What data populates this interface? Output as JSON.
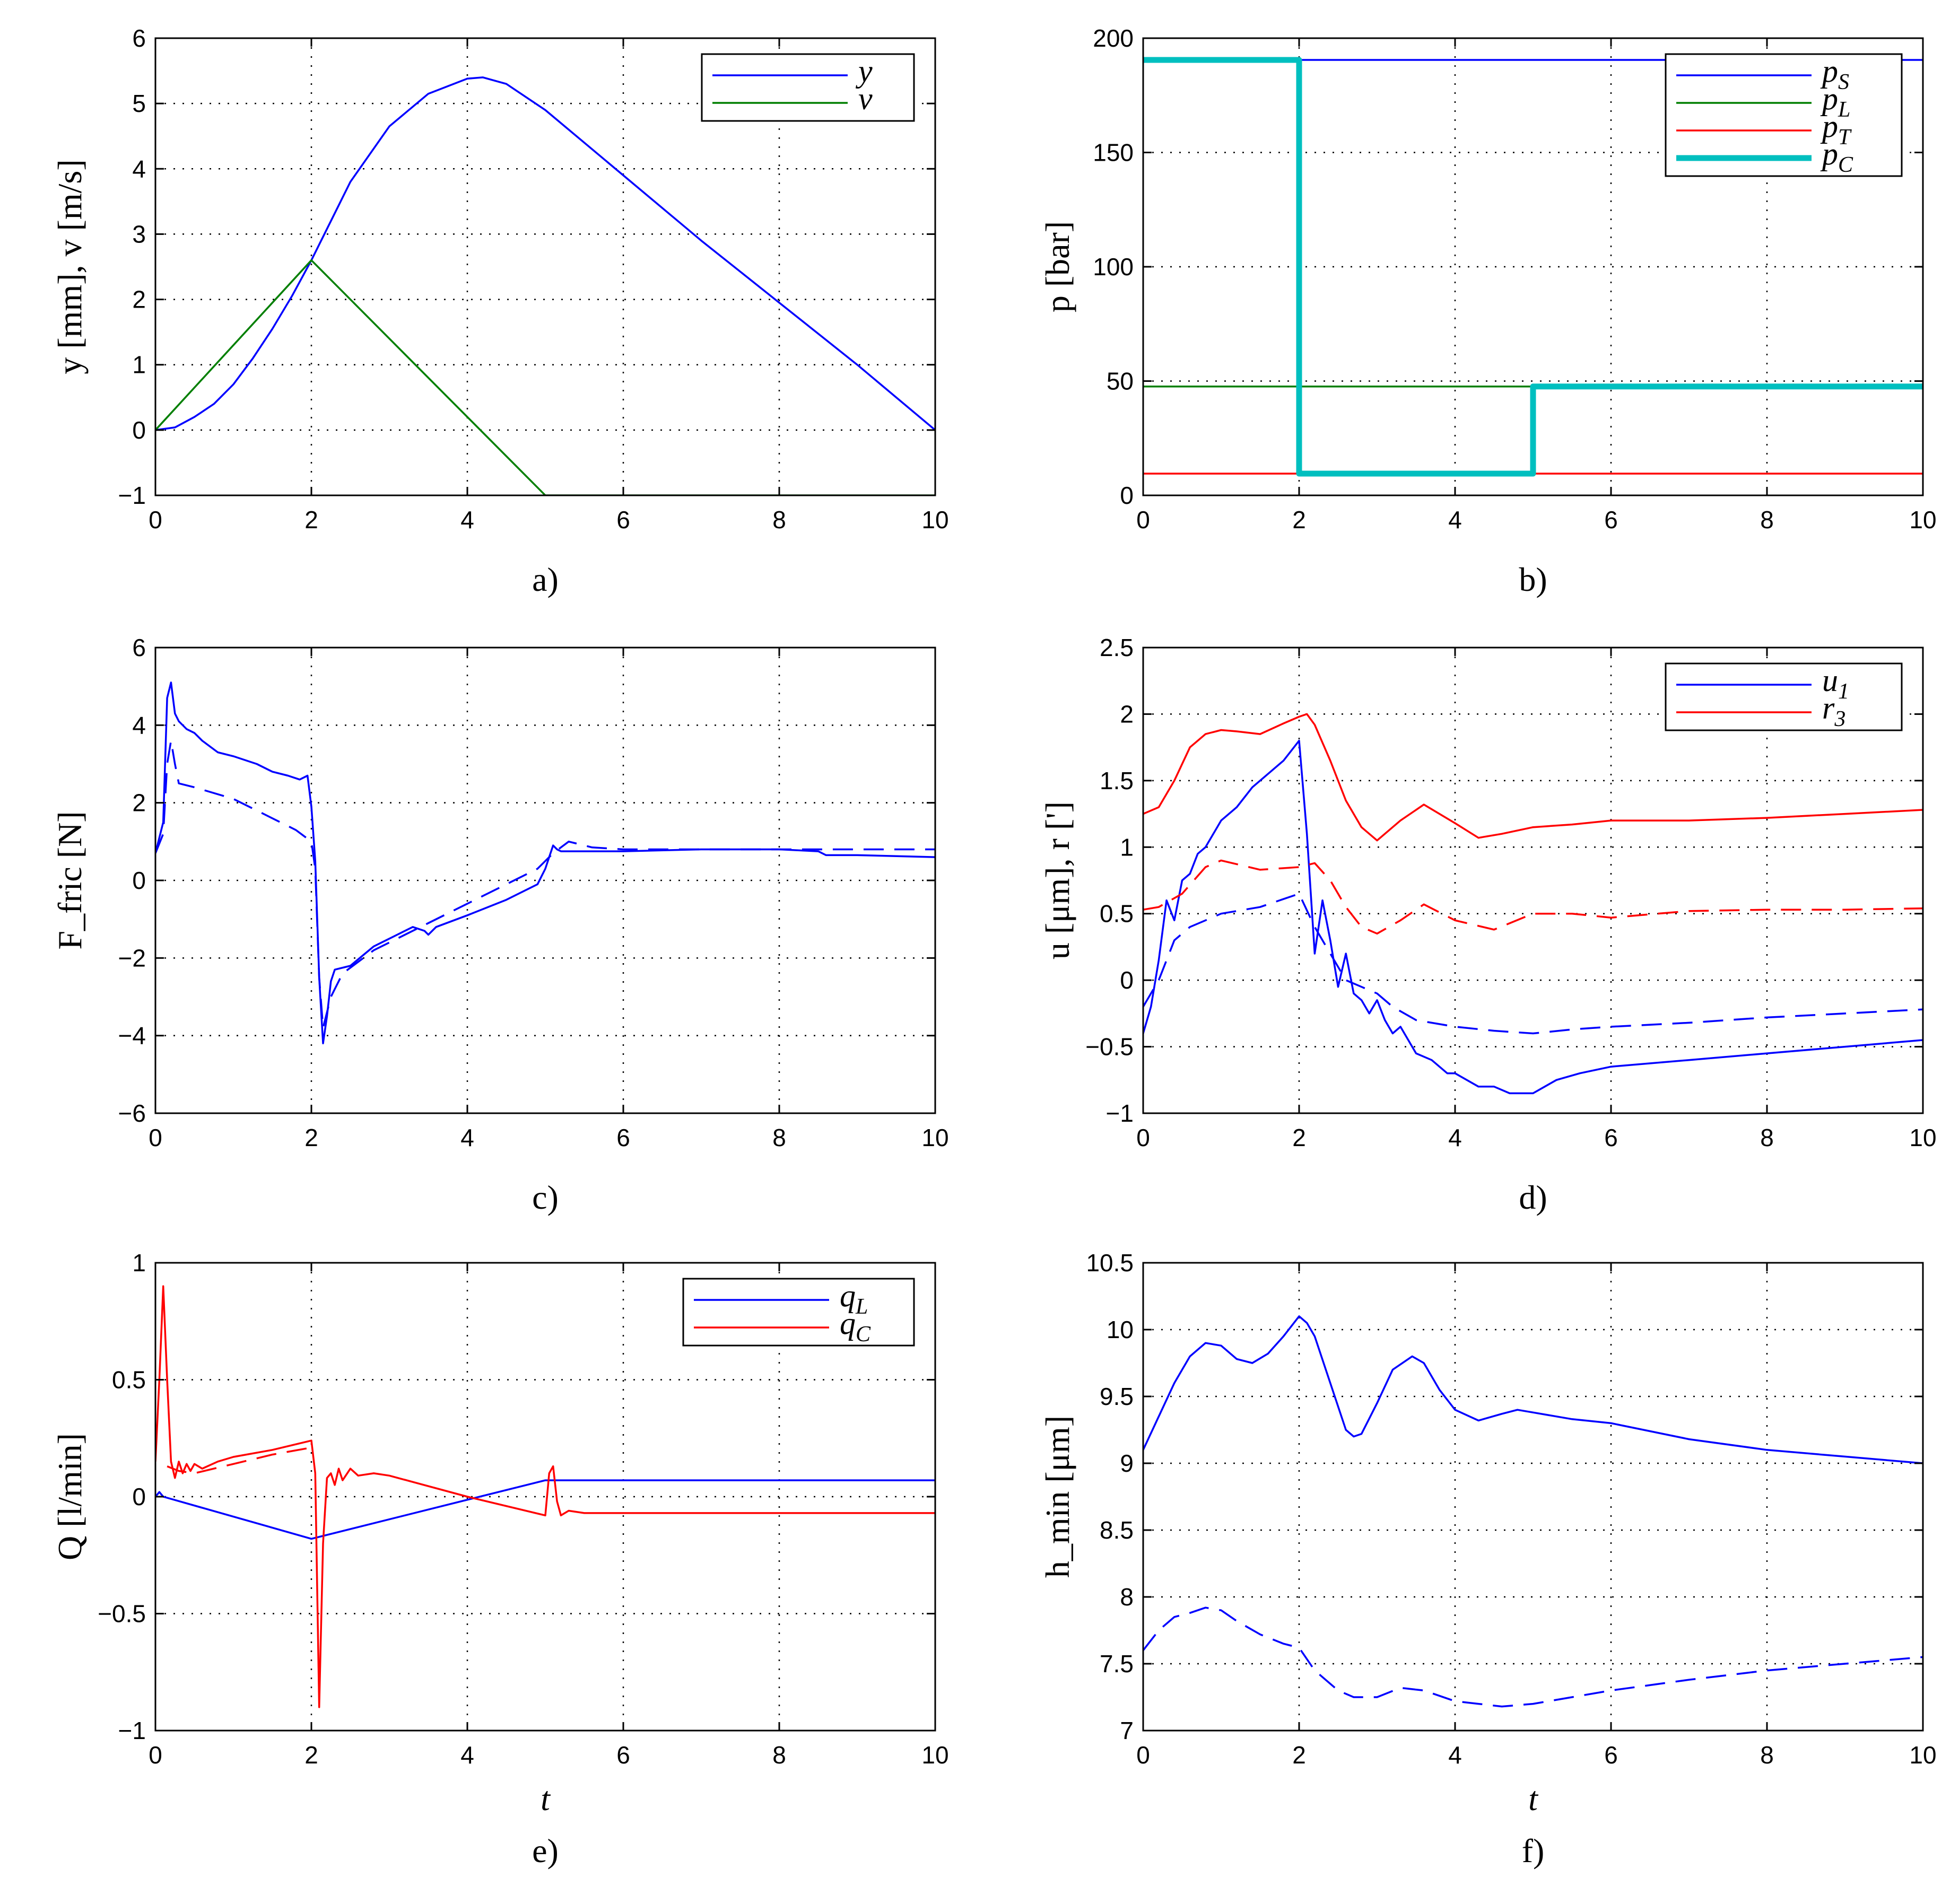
{
  "chart_data": [
    {
      "panel": "a",
      "type": "line",
      "caption": "a)",
      "xlabel": "",
      "ylabel": "y [mm], v [m/s]",
      "xlim": [
        0,
        10
      ],
      "ylim": [
        -1,
        6
      ],
      "xticks": [
        "0",
        "2",
        "4",
        "6",
        "8",
        "10"
      ],
      "yticks": [
        "−1",
        "0",
        "1",
        "2",
        "3",
        "4",
        "5",
        "6"
      ],
      "grid": true,
      "legend_position": "top-right",
      "series": [
        {
          "name": "y",
          "color": "#0000ff",
          "dash": "solid",
          "width": "normal",
          "x": [
            0,
            0.25,
            0.5,
            0.75,
            1.0,
            1.25,
            1.5,
            1.75,
            2.0,
            2.5,
            3.0,
            3.5,
            4.0,
            4.2,
            4.5,
            5.0,
            6.0,
            7.0,
            8.0,
            9.0,
            10.0
          ],
          "y": [
            0,
            0.04,
            0.2,
            0.4,
            0.7,
            1.1,
            1.55,
            2.05,
            2.6,
            3.8,
            4.65,
            5.15,
            5.38,
            5.4,
            5.3,
            4.9,
            3.9,
            2.9,
            1.95,
            1.0,
            0
          ]
        },
        {
          "name": "v",
          "color": "#007f00",
          "dash": "solid",
          "width": "normal",
          "x": [
            0,
            2,
            5,
            10
          ],
          "y": [
            0,
            2.6,
            -1,
            -1
          ]
        }
      ]
    },
    {
      "panel": "b",
      "type": "line",
      "caption": "b)",
      "xlabel": "",
      "ylabel": "p [bar]",
      "xlim": [
        0,
        10
      ],
      "ylim": [
        0,
        210
      ],
      "xticks": [
        "0",
        "2",
        "4",
        "6",
        "8",
        "10"
      ],
      "yticks": [
        "0",
        "50",
        "100",
        "150",
        "200"
      ],
      "grid": true,
      "legend_position": "top-right",
      "series": [
        {
          "name": "pS",
          "color": "#0000ff",
          "dash": "solid",
          "width": "normal",
          "x": [
            0,
            10
          ],
          "y": [
            200,
            200
          ]
        },
        {
          "name": "pL",
          "color": "#007f00",
          "dash": "solid",
          "width": "normal",
          "x": [
            0,
            10
          ],
          "y": [
            50,
            50
          ]
        },
        {
          "name": "pT",
          "color": "#ff0000",
          "dash": "solid",
          "width": "normal",
          "x": [
            0,
            10
          ],
          "y": [
            10,
            10
          ]
        },
        {
          "name": "pC",
          "color": "#00bfbf",
          "dash": "solid",
          "width": "thick",
          "x": [
            0,
            2,
            2,
            5,
            5,
            10
          ],
          "y": [
            200,
            200,
            10,
            10,
            50,
            50
          ]
        }
      ]
    },
    {
      "panel": "c",
      "type": "line",
      "caption": "c)",
      "xlabel": "",
      "ylabel": "F_fric [N]",
      "xlim": [
        0,
        10
      ],
      "ylim": [
        -6,
        6
      ],
      "xticks": [
        "0",
        "2",
        "4",
        "6",
        "8",
        "10"
      ],
      "yticks": [
        "−6",
        "−4",
        "−2",
        "0",
        "2",
        "4",
        "6"
      ],
      "grid": true,
      "legend_position": "none",
      "series": [
        {
          "name": "solid",
          "color": "#0000ff",
          "dash": "solid",
          "width": "normal",
          "x": [
            0,
            0.1,
            0.15,
            0.2,
            0.25,
            0.3,
            0.35,
            0.4,
            0.5,
            0.6,
            0.8,
            1.0,
            1.3,
            1.5,
            1.7,
            1.85,
            1.95,
            2.0,
            2.05,
            2.1,
            2.15,
            2.2,
            2.25,
            2.3,
            2.5,
            2.8,
            3.0,
            3.3,
            3.45,
            3.5,
            3.6,
            4.0,
            4.5,
            4.9,
            5.0,
            5.05,
            5.1,
            5.15,
            5.2,
            5.5,
            6.0,
            7.0,
            8.0,
            8.5,
            8.6,
            9.0,
            10.0
          ],
          "y": [
            0.7,
            1.5,
            4.7,
            5.1,
            4.3,
            4.1,
            4.0,
            3.9,
            3.8,
            3.6,
            3.3,
            3.2,
            3.0,
            2.8,
            2.7,
            2.6,
            2.7,
            1.9,
            0.5,
            -2.5,
            -4.2,
            -3.5,
            -2.6,
            -2.3,
            -2.2,
            -1.7,
            -1.5,
            -1.2,
            -1.3,
            -1.4,
            -1.2,
            -0.9,
            -0.5,
            -0.1,
            0.3,
            0.6,
            0.9,
            0.8,
            0.75,
            0.75,
            0.75,
            0.8,
            0.8,
            0.75,
            0.65,
            0.65,
            0.6
          ]
        },
        {
          "name": "dashed",
          "color": "#0000ff",
          "dash": "dashed",
          "width": "normal",
          "x": [
            0,
            0.1,
            0.15,
            0.2,
            0.25,
            0.3,
            0.5,
            1.0,
            1.5,
            1.8,
            2.0,
            2.05,
            2.1,
            2.15,
            2.25,
            2.4,
            2.8,
            3.5,
            4.0,
            4.5,
            4.9,
            5.1,
            5.3,
            5.6,
            6.0,
            7.0,
            8.0,
            9.0,
            10.0
          ],
          "y": [
            0.7,
            1.2,
            3.0,
            3.6,
            3.0,
            2.5,
            2.4,
            2.1,
            1.6,
            1.3,
            1.0,
            0.3,
            -2.5,
            -3.8,
            -3.0,
            -2.4,
            -1.8,
            -1.1,
            -0.6,
            -0.1,
            0.3,
            0.7,
            1.0,
            0.85,
            0.8,
            0.8,
            0.8,
            0.8,
            0.8
          ]
        }
      ]
    },
    {
      "panel": "d",
      "type": "line",
      "caption": "d)",
      "xlabel": "",
      "ylabel": "u [μm], r [']",
      "xlim": [
        0,
        10
      ],
      "ylim": [
        -1,
        2.5
      ],
      "xticks": [
        "0",
        "2",
        "4",
        "6",
        "8",
        "10"
      ],
      "yticks": [
        "−1",
        "−0.5",
        "0",
        "0.5",
        "1",
        "1.5",
        "2",
        "2.5"
      ],
      "grid": true,
      "legend_position": "top-right",
      "series": [
        {
          "name": "u1",
          "color": "#0000ff",
          "dash": "solid",
          "width": "normal",
          "x": [
            0,
            0.1,
            0.2,
            0.3,
            0.4,
            0.5,
            0.6,
            0.7,
            0.8,
            1.0,
            1.2,
            1.4,
            1.6,
            1.8,
            2.0,
            2.1,
            2.2,
            2.3,
            2.4,
            2.5,
            2.6,
            2.7,
            2.8,
            2.9,
            3.0,
            3.1,
            3.2,
            3.3,
            3.5,
            3.7,
            3.9,
            4.0,
            4.3,
            4.5,
            4.7,
            5.0,
            5.3,
            5.6,
            6.0,
            7.0,
            8.0,
            9.0,
            10.0
          ],
          "y": [
            -0.4,
            -0.2,
            0.15,
            0.6,
            0.45,
            0.75,
            0.8,
            0.95,
            1.0,
            1.2,
            1.3,
            1.45,
            1.55,
            1.65,
            1.8,
            1.1,
            0.2,
            0.6,
            0.3,
            -0.05,
            0.2,
            -0.1,
            -0.15,
            -0.25,
            -0.15,
            -0.3,
            -0.4,
            -0.35,
            -0.55,
            -0.6,
            -0.7,
            -0.7,
            -0.8,
            -0.8,
            -0.85,
            -0.85,
            -0.75,
            -0.7,
            -0.65,
            -0.6,
            -0.55,
            -0.5,
            -0.45
          ]
        },
        {
          "name": "r3",
          "color": "#ff0000",
          "dash": "solid",
          "width": "normal",
          "x": [
            0,
            0.2,
            0.4,
            0.6,
            0.8,
            1.0,
            1.2,
            1.5,
            1.8,
            2.0,
            2.1,
            2.2,
            2.4,
            2.6,
            2.8,
            3.0,
            3.3,
            3.6,
            4.0,
            4.3,
            4.6,
            5.0,
            5.5,
            6.0,
            7.0,
            8.0,
            9.0,
            10.0
          ],
          "y": [
            1.25,
            1.3,
            1.5,
            1.75,
            1.85,
            1.88,
            1.87,
            1.85,
            1.93,
            1.98,
            2.0,
            1.92,
            1.65,
            1.35,
            1.15,
            1.05,
            1.2,
            1.32,
            1.18,
            1.07,
            1.1,
            1.15,
            1.17,
            1.2,
            1.2,
            1.22,
            1.25,
            1.28
          ]
        },
        {
          "name": "u1 (dashed)",
          "color": "#0000ff",
          "dash": "dashed",
          "width": "normal",
          "x": [
            0,
            0.2,
            0.4,
            0.6,
            0.8,
            1.0,
            1.5,
            2.0,
            2.2,
            2.4,
            2.6,
            2.8,
            3.0,
            3.2,
            3.5,
            4.0,
            4.5,
            5.0,
            5.5,
            6.0,
            7.0,
            8.0,
            9.0,
            10.0
          ],
          "y": [
            -0.2,
            0.0,
            0.3,
            0.4,
            0.45,
            0.5,
            0.55,
            0.65,
            0.4,
            0.2,
            0.0,
            -0.05,
            -0.1,
            -0.2,
            -0.3,
            -0.35,
            -0.38,
            -0.4,
            -0.37,
            -0.35,
            -0.32,
            -0.28,
            -0.25,
            -0.22
          ]
        },
        {
          "name": "r3 (dashed)",
          "color": "#ff0000",
          "dash": "dashed",
          "width": "normal",
          "x": [
            0,
            0.2,
            0.5,
            0.8,
            1.0,
            1.5,
            2.0,
            2.2,
            2.4,
            2.6,
            2.8,
            3.0,
            3.3,
            3.6,
            4.0,
            4.5,
            5.0,
            5.5,
            6.0,
            7.0,
            8.0,
            9.0,
            10.0
          ],
          "y": [
            0.53,
            0.55,
            0.65,
            0.85,
            0.9,
            0.83,
            0.85,
            0.88,
            0.75,
            0.55,
            0.4,
            0.35,
            0.45,
            0.57,
            0.45,
            0.38,
            0.5,
            0.5,
            0.47,
            0.52,
            0.53,
            0.53,
            0.54
          ]
        }
      ]
    },
    {
      "panel": "e",
      "type": "line",
      "caption": "e)",
      "xlabel": "t",
      "ylabel": "Q [l/min]",
      "xlim": [
        0,
        10
      ],
      "ylim": [
        -1,
        1
      ],
      "xticks": [
        "0",
        "2",
        "4",
        "6",
        "8",
        "10"
      ],
      "yticks": [
        "−1",
        "−0.5",
        "0",
        "0.5",
        "1"
      ],
      "grid": true,
      "legend_position": "top-right",
      "series": [
        {
          "name": "qL",
          "color": "#0000ff",
          "dash": "solid",
          "width": "normal",
          "x": [
            0,
            0.05,
            0.1,
            2.0,
            5.0,
            10.0
          ],
          "y": [
            0,
            0.02,
            0.0,
            -0.18,
            0.07,
            0.07
          ]
        },
        {
          "name": "qC",
          "color": "#ff0000",
          "dash": "solid",
          "width": "normal",
          "x": [
            0,
            0.05,
            0.1,
            0.15,
            0.2,
            0.25,
            0.3,
            0.35,
            0.4,
            0.45,
            0.5,
            0.6,
            0.8,
            1.0,
            1.5,
            2.0,
            2.05,
            2.1,
            2.15,
            2.2,
            2.25,
            2.3,
            2.35,
            2.4,
            2.5,
            2.6,
            2.8,
            3.0,
            4.0,
            5.0,
            5.05,
            5.1,
            5.15,
            5.2,
            5.3,
            5.5,
            6.0,
            10.0
          ],
          "y": [
            0.15,
            0.5,
            0.9,
            0.5,
            0.15,
            0.08,
            0.15,
            0.1,
            0.14,
            0.11,
            0.14,
            0.12,
            0.15,
            0.17,
            0.2,
            0.24,
            0.1,
            -0.9,
            -0.2,
            0.08,
            0.1,
            0.05,
            0.12,
            0.07,
            0.12,
            0.09,
            0.1,
            0.09,
            0.0,
            -0.08,
            0.1,
            0.13,
            -0.02,
            -0.08,
            -0.06,
            -0.07,
            -0.07,
            -0.07
          ]
        },
        {
          "name": "qC (dashed)",
          "color": "#ff0000",
          "dash": "dashed",
          "width": "normal",
          "x": [
            0.15,
            0.3,
            0.5,
            1.0,
            1.5,
            2.0
          ],
          "y": [
            0.13,
            0.11,
            0.1,
            0.14,
            0.18,
            0.21
          ]
        }
      ]
    },
    {
      "panel": "f",
      "type": "line",
      "caption": "f)",
      "xlabel": "t",
      "ylabel": "h_min [μm]",
      "xlim": [
        0,
        10
      ],
      "ylim": [
        7,
        10.5
      ],
      "xticks": [
        "0",
        "2",
        "4",
        "6",
        "8",
        "10"
      ],
      "yticks": [
        "7",
        "7.5",
        "8",
        "8.5",
        "9",
        "9.5",
        "10",
        "10.5"
      ],
      "grid": true,
      "legend_position": "none",
      "series": [
        {
          "name": "solid",
          "color": "#0000ff",
          "dash": "solid",
          "width": "normal",
          "x": [
            0,
            0.2,
            0.4,
            0.6,
            0.8,
            1.0,
            1.2,
            1.4,
            1.6,
            1.8,
            2.0,
            2.1,
            2.2,
            2.4,
            2.6,
            2.7,
            2.8,
            3.0,
            3.2,
            3.45,
            3.6,
            3.8,
            4.0,
            4.3,
            4.6,
            4.8,
            5.0,
            5.5,
            6.0,
            7.0,
            8.0,
            9.0,
            10.0
          ],
          "y": [
            9.1,
            9.35,
            9.6,
            9.8,
            9.9,
            9.88,
            9.78,
            9.75,
            9.82,
            9.95,
            10.1,
            10.05,
            9.95,
            9.6,
            9.25,
            9.2,
            9.22,
            9.45,
            9.7,
            9.8,
            9.75,
            9.55,
            9.4,
            9.32,
            9.37,
            9.4,
            9.38,
            9.33,
            9.3,
            9.18,
            9.1,
            9.05,
            9.0
          ]
        },
        {
          "name": "dashed",
          "color": "#0000ff",
          "dash": "dashed",
          "width": "normal",
          "x": [
            0,
            0.2,
            0.4,
            0.6,
            0.8,
            1.0,
            1.2,
            1.5,
            1.8,
            2.0,
            2.2,
            2.5,
            2.7,
            3.0,
            3.3,
            3.6,
            4.0,
            4.3,
            4.6,
            5.0,
            5.5,
            6.0,
            7.0,
            8.0,
            9.0,
            10.0
          ],
          "y": [
            7.6,
            7.75,
            7.85,
            7.88,
            7.92,
            7.9,
            7.82,
            7.72,
            7.65,
            7.62,
            7.45,
            7.3,
            7.25,
            7.25,
            7.32,
            7.3,
            7.22,
            7.2,
            7.18,
            7.2,
            7.25,
            7.3,
            7.38,
            7.45,
            7.5,
            7.55
          ]
        }
      ]
    }
  ]
}
